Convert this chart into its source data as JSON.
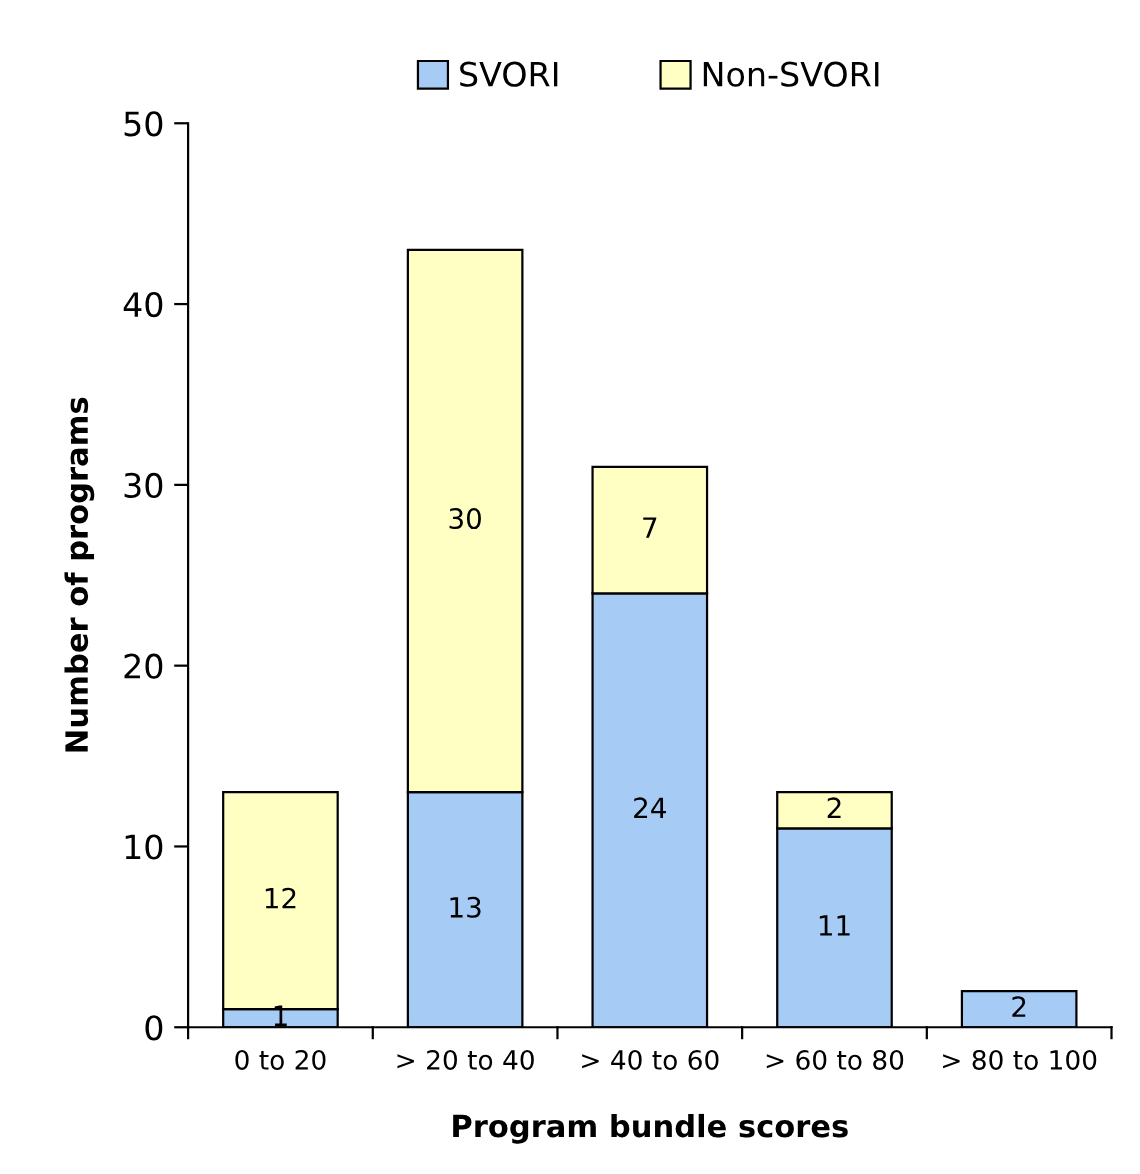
{
  "chart_data": {
    "type": "bar",
    "stacked": true,
    "xlabel": "Program bundle scores",
    "ylabel": "Number of programs",
    "categories": [
      "0 to 20",
      "> 20 to 40",
      "> 40 to 60",
      "> 60 to 80",
      "> 80 to 100"
    ],
    "series": [
      {
        "name": "SVORI",
        "color": "#a6cbf5",
        "values": [
          1,
          13,
          24,
          11,
          2
        ]
      },
      {
        "name": "Non-SVORI",
        "color": "#ffffc4",
        "values": [
          12,
          30,
          7,
          2,
          null
        ]
      }
    ],
    "ylim": [
      0,
      50
    ],
    "yticks": [
      0,
      10,
      20,
      30,
      40,
      50
    ],
    "grid": false,
    "legend": "top",
    "data_labels": true
  }
}
